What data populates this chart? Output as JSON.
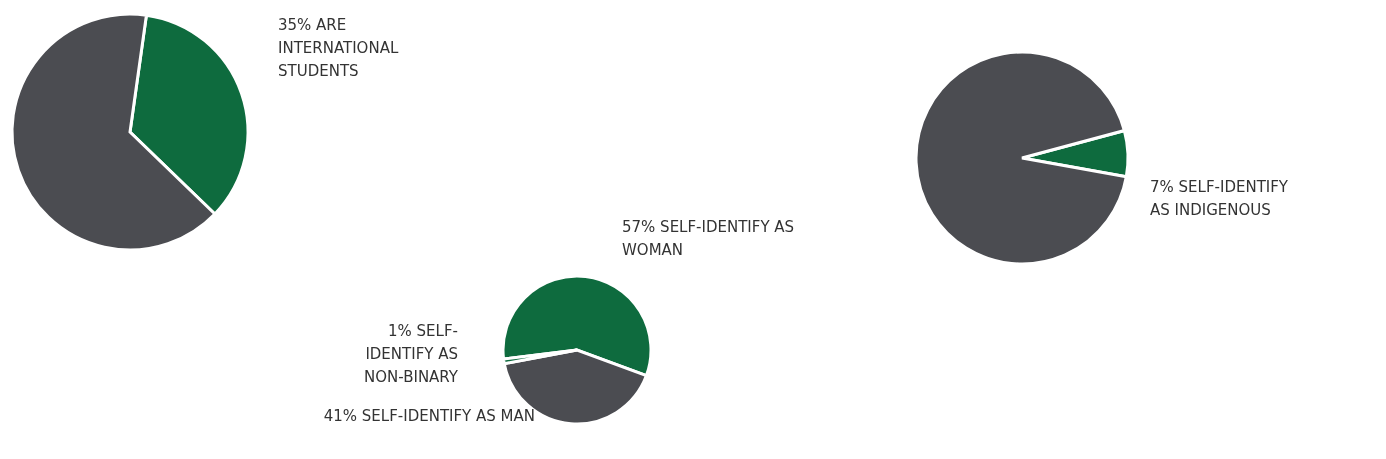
{
  "chart_data": [
    {
      "type": "pie",
      "categories": [
        "35% ARE INTERNATIONAL STUDENTS",
        null
      ],
      "values": [
        35,
        65
      ],
      "colors": [
        "#0e6b3e",
        "#4b4c51"
      ]
    },
    {
      "type": "pie",
      "categories": [
        "57% SELF-IDENTIFY AS WOMAN",
        "41% SELF-IDENTIFY AS MAN",
        "1% SELF-IDENTIFY AS NON-BINARY"
      ],
      "values": [
        57,
        41,
        1
      ],
      "colors": [
        "#0e6b3e",
        "#4b4c51",
        "#0e6b3e"
      ]
    },
    {
      "type": "pie",
      "categories": [
        "7% SELF-IDENTIFY AS INDIGENOUS",
        null
      ],
      "values": [
        7,
        93
      ],
      "colors": [
        "#0e6b3e",
        "#4b4c51"
      ]
    }
  ]
}
